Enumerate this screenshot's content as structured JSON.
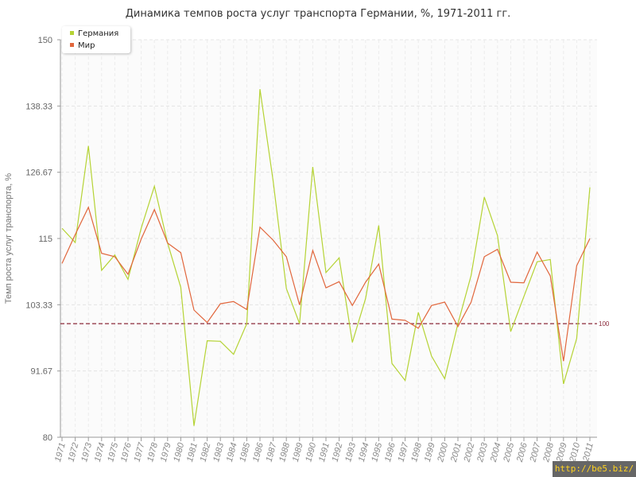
{
  "chart_data": {
    "type": "line",
    "title": "Динамика темпов роста услуг транспорта Германии, %, 1971-2011 гг.",
    "ylabel": "Темп роста услуг транспорта, %",
    "xlabel": "",
    "ylim": [
      80,
      150
    ],
    "y_ticks": [
      "80",
      "91.67",
      "103.33",
      "115",
      "126.67",
      "138.33",
      "150"
    ],
    "x": [
      "1971",
      "1972",
      "1973",
      "1974",
      "1975",
      "1976",
      "1977",
      "1978",
      "1979",
      "1980",
      "1981",
      "1982",
      "1983",
      "1984",
      "1985",
      "1986",
      "1987",
      "1988",
      "1989",
      "1990",
      "1991",
      "1992",
      "1993",
      "1994",
      "1995",
      "1996",
      "1997",
      "1998",
      "1999",
      "2000",
      "2001",
      "2002",
      "2003",
      "2004",
      "2005",
      "2006",
      "2007",
      "2008",
      "2009",
      "2010",
      "2011"
    ],
    "series": [
      {
        "name": "Германия",
        "color": "#b5d334",
        "values": [
          116.8,
          114.3,
          131.3,
          109.4,
          112.1,
          107.8,
          116.8,
          124.2,
          114.2,
          106.4,
          82.0,
          97.0,
          96.9,
          94.6,
          100.0,
          141.3,
          125.1,
          106.2,
          100.0,
          127.6,
          109.0,
          111.6,
          96.7,
          104.4,
          117.3,
          93.0,
          90.0,
          102.0,
          94.3,
          90.3,
          100.0,
          108.5,
          122.3,
          115.5,
          98.6,
          104.8,
          110.9,
          111.3,
          89.4,
          97.4,
          124.0
        ]
      },
      {
        "name": "Мир",
        "color": "#e1663c",
        "values": [
          110.6,
          115.7,
          120.5,
          112.4,
          111.8,
          108.7,
          114.9,
          120.1,
          114.2,
          112.5,
          102.4,
          100.2,
          103.5,
          103.9,
          102.5,
          117.0,
          114.7,
          111.8,
          103.3,
          112.9,
          106.3,
          107.4,
          103.2,
          107.3,
          110.5,
          100.8,
          100.6,
          99.2,
          103.2,
          103.8,
          99.5,
          103.8,
          111.8,
          113.1,
          107.3,
          107.2,
          112.6,
          108.4,
          93.4,
          110.2,
          115.0
        ]
      }
    ],
    "reference_line": {
      "value": 100,
      "label": "100",
      "color": "#8b2a3a"
    },
    "grid": true,
    "legend_position": "top-left"
  },
  "watermark": "http://be5.biz/"
}
